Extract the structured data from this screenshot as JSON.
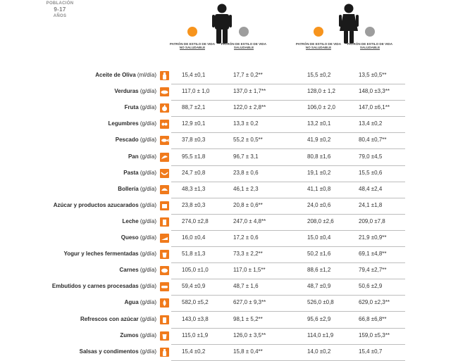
{
  "population": {
    "label": "POBLACIÓN",
    "age_range": "9-17",
    "age_unit": "AÑOS"
  },
  "colors": {
    "unhealthy": "#f7941d",
    "healthy": "#9d9d9d",
    "icon_bg": "#f07a1c",
    "person": "#1a1a1a"
  },
  "groups": [
    {
      "icon": "boy-icon",
      "columns": [
        {
          "dot": "unhealthy",
          "label_top": "PATRÓN DE ESTILO DE VIDA",
          "label_bottom": "NO SALUDABLE"
        },
        {
          "dot": "healthy",
          "label_top": "PATRÓN DE ESTILO DE VIDA",
          "label_bottom": "SALUDABLE"
        }
      ]
    },
    {
      "icon": "girl-icon",
      "columns": [
        {
          "dot": "unhealthy",
          "label_top": "PATRÓN DE ESTILO DE VIDA",
          "label_bottom": "NO SALUDABLE"
        },
        {
          "dot": "healthy",
          "label_top": "PATRÓN DE ESTILO DE VIDA",
          "label_bottom": "SALUDABLE"
        }
      ]
    }
  ],
  "rows": [
    {
      "name": "Aceite de Oliva",
      "unit": "(ml/día)",
      "icon": "oil-bottle-icon",
      "v": [
        "15,4 ±0,1",
        "17,7 ± 0,2**",
        "15,5 ±0,2",
        "13,5 ±0,5**"
      ]
    },
    {
      "name": "Verduras",
      "unit": "(g/día)",
      "icon": "vegetables-icon",
      "v": [
        "117,0 ± 1,0",
        "137,0 ± 1,7**",
        "128,0 ± 1,2",
        "148,0 ±3,3**"
      ]
    },
    {
      "name": "Fruta",
      "unit": "(g/día)",
      "icon": "fruit-icon",
      "v": [
        "88,7 ±2,1",
        "122,0 ± 2,8**",
        "106,0 ± 2,0",
        "147,0 ±6,1**"
      ]
    },
    {
      "name": "Legumbres",
      "unit": "(g/día)",
      "icon": "legumes-icon",
      "v": [
        "12,9 ±0,1",
        "13,3 ± 0,2",
        "13,2 ±0,1",
        "13,4 ±0,2"
      ]
    },
    {
      "name": "Pescado",
      "unit": "(g/día)",
      "icon": "fish-icon",
      "v": [
        "37,8 ±0,3",
        "55,2 ± 0,5**",
        "41,9 ±0,2",
        "80,4 ±0,7**"
      ]
    },
    {
      "name": "Pan",
      "unit": "(g/día)",
      "icon": "bread-icon",
      "v": [
        "95,5 ±1,8",
        "96,7 ± 3,1",
        "80,8 ±1,6",
        "79,0 ±4,5"
      ]
    },
    {
      "name": "Pasta",
      "unit": "(g/día)",
      "icon": "pasta-icon",
      "v": [
        "24,7 ±0,8",
        "23,8 ± 0,6",
        "19,1 ±0,2",
        "15,5 ±0,6"
      ]
    },
    {
      "name": "Bollería",
      "unit": "(g/día)",
      "icon": "pastry-icon",
      "v": [
        "48,3 ±1,3",
        "46,1 ± 2,3",
        "41,1 ±0,8",
        "48,4 ±2,4"
      ]
    },
    {
      "name": "Azúcar y productos azucarados",
      "unit": "(g/día)",
      "icon": "sugar-icon",
      "v": [
        "23,8 ±0,3",
        "20,8 ± 0,6**",
        "24,0 ±0,6",
        "24,1 ±1,8"
      ]
    },
    {
      "name": "Leche",
      "unit": "(g/día)",
      "icon": "milk-icon",
      "v": [
        "274,0 ±2,8",
        "247,0 ± 4,8**",
        "208,0 ±2,6",
        "209,0 ±7,8"
      ]
    },
    {
      "name": "Queso",
      "unit": "(g/día)",
      "icon": "cheese-icon",
      "v": [
        "16,0 ±0,4",
        "17,2 ± 0,6",
        "15,0 ±0,4",
        "21,9 ±0,9**"
      ]
    },
    {
      "name": "Yogur y leches fermentadas",
      "unit": "(g/día)",
      "icon": "yogurt-icon",
      "v": [
        "51,8 ±1,3",
        "73,3 ± 2,2**",
        "50,2 ±1,6",
        "69,1 ±4,8**"
      ]
    },
    {
      "name": "Carnes",
      "unit": "(g/día)",
      "icon": "meat-icon",
      "v": [
        "105,0 ±1,0",
        "117,0 ± 1,5**",
        "88,6 ±1,2",
        "79,4 ±2,7**"
      ]
    },
    {
      "name": "Embutidos y carnes procesadas",
      "unit": "(g/día)",
      "icon": "sausage-icon",
      "v": [
        "59,4 ±0,9",
        "48,7 ± 1,6",
        "48,7 ±0,9",
        "50,6 ±2,9"
      ]
    },
    {
      "name": "Agua",
      "unit": "(g/día)",
      "icon": "water-icon",
      "v": [
        "582,0 ±5,2",
        "627,0 ± 9,3**",
        "526,0 ±0,8",
        "629,0 ±2,3**"
      ]
    },
    {
      "name": "Refrescos con azúcar",
      "unit": "(g/día)",
      "icon": "soda-icon",
      "v": [
        "143,0 ±3,8",
        "98,1 ± 5,2**",
        "95,6 ±2,9",
        "66,8 ±6,8**"
      ]
    },
    {
      "name": "Zumos",
      "unit": "(g/día)",
      "icon": "juice-icon",
      "v": [
        "115,0 ±1,9",
        "126,0 ± 3,5**",
        "114,0 ±1,9",
        "159,0 ±5,3**"
      ]
    },
    {
      "name": "Salsas y condimentos",
      "unit": "(g/día)",
      "icon": "sauce-icon",
      "v": [
        "15,4 ±0,2",
        "15,8 ± 0,4**",
        "14,0 ±0,2",
        "15,4 ±0,7"
      ]
    }
  ]
}
